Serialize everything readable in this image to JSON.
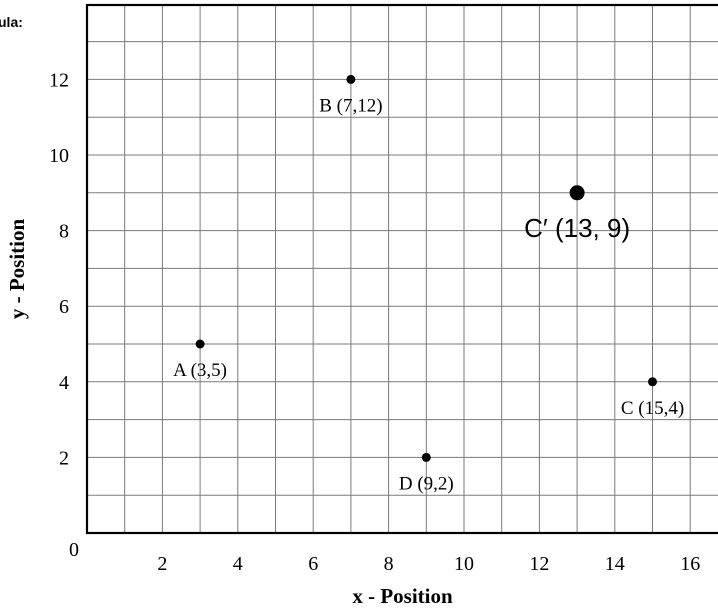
{
  "corner_text": "ula:",
  "chart_data": {
    "type": "scatter",
    "xlabel": "x - Position",
    "ylabel": "y - Position",
    "xlim": [
      0,
      16.5
    ],
    "ylim": [
      0,
      13.5
    ],
    "x_ticks": [
      2,
      4,
      6,
      8,
      10,
      12,
      14,
      16
    ],
    "y_ticks": [
      2,
      4,
      6,
      8,
      10,
      12
    ],
    "origin_label": "0",
    "grid": true,
    "grid_step": 1,
    "points": [
      {
        "x": 3,
        "y": 5,
        "label": "A (3,5)",
        "emphasis": false,
        "label_pos": "below"
      },
      {
        "x": 7,
        "y": 12,
        "label": "B (7,12)",
        "emphasis": false,
        "label_pos": "below"
      },
      {
        "x": 15,
        "y": 4,
        "label": "C (15,4)",
        "emphasis": false,
        "label_pos": "below"
      },
      {
        "x": 9,
        "y": 2,
        "label": "D (9,2)",
        "emphasis": false,
        "label_pos": "below"
      },
      {
        "x": 13,
        "y": 9,
        "label": "C′ (13, 9)",
        "emphasis": true,
        "label_pos": "below"
      }
    ]
  }
}
